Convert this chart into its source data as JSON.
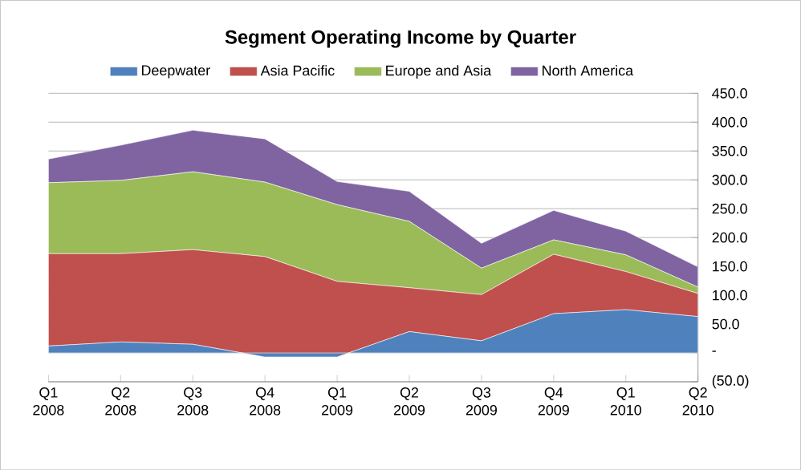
{
  "chart_data": {
    "type": "area",
    "stacked": true,
    "title": "Segment Operating Income by Quarter",
    "categories": [
      "Q1 2008",
      "Q2 2008",
      "Q3 2008",
      "Q4 2008",
      "Q1 2009",
      "Q2 2009",
      "Q3 2009",
      "Q4 2009",
      "Q1 2010",
      "Q2 2010"
    ],
    "series": [
      {
        "name": "Deepwater",
        "color": "#4f81bd",
        "values": [
          12,
          19,
          15,
          -7,
          -7,
          37,
          21,
          68,
          75,
          63
        ]
      },
      {
        "name": "Asia Pacific",
        "color": "#c0504d",
        "values": [
          160,
          153,
          164,
          174,
          131,
          76,
          80,
          103,
          66,
          40
        ]
      },
      {
        "name": "Europe and Asia",
        "color": "#9bbb59",
        "values": [
          123,
          127,
          135,
          129,
          133,
          115,
          46,
          25,
          29,
          11
        ]
      },
      {
        "name": "North America",
        "color": "#8064a2",
        "values": [
          41,
          61,
          72,
          75,
          40,
          52,
          43,
          51,
          41,
          35
        ]
      }
    ],
    "ylim": [
      -50,
      450
    ],
    "yticks": [
      {
        "value": -50,
        "label": "(50.0)"
      },
      {
        "value": 0,
        "label": "-"
      },
      {
        "value": 50,
        "label": "50.0"
      },
      {
        "value": 100,
        "label": "100.0"
      },
      {
        "value": 150,
        "label": "150.0"
      },
      {
        "value": 200,
        "label": "200.0"
      },
      {
        "value": 250,
        "label": "250.0"
      },
      {
        "value": 300,
        "label": "300.0"
      },
      {
        "value": 350,
        "label": "350.0"
      },
      {
        "value": 400,
        "label": "400.0"
      },
      {
        "value": 450,
        "label": "450.0"
      }
    ],
    "grid": "y",
    "legend": "top"
  }
}
